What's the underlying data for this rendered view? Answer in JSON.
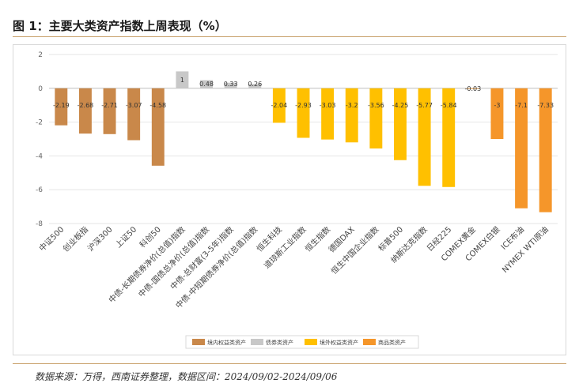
{
  "title": "图 1：主要大类资产指数上周表现（%）",
  "source": "数据来源：万得，西南证券整理，数据区间：2024/09/02-2024/09/06",
  "colors": {
    "domestic_equity": "#c9884a",
    "bond": "#c8c8c8",
    "overseas_equity": "#ffc000",
    "commodity": "#f5962a",
    "grid": "#e6e6e6",
    "axis": "#bfbfbf"
  },
  "chart_data": {
    "type": "bar",
    "ylim": [
      -8,
      2
    ],
    "yticks": [
      "2",
      "0",
      "-2",
      "-4",
      "-6",
      "-8"
    ],
    "grid": true,
    "legend_position": "bottom",
    "categories": [
      "中证500",
      "创业板指",
      "沪深300",
      "上证50",
      "科创50",
      "中债-长期债券净价(总值)指数",
      "中债-国债总净价(总值)指数",
      "中债-总财富(3-5年)指数",
      "中债-中短期债券净价(总值)指数",
      "恒生科技",
      "道琼斯工业指数",
      "恒生指数",
      "德国DAX",
      "恒生中国企业指数",
      "标普500",
      "纳斯达克指数",
      "日经225",
      "COMEX黄金",
      "COMEX白银",
      "ICE布油",
      "NYMEX WTI原油"
    ],
    "values": [
      -2.19,
      -2.68,
      -2.71,
      -3.07,
      -4.58,
      1,
      0.48,
      0.33,
      0.26,
      -2.04,
      -2.93,
      -3.03,
      -3.2,
      -3.56,
      -4.25,
      -5.77,
      -5.84,
      -0.03,
      -3,
      -7.1,
      -7.33
    ],
    "value_labels": [
      "-2.19",
      "-2.68",
      "-2.71",
      "-3.07",
      "-4.58",
      "1",
      "0.48",
      "0.33",
      "0.26",
      "-2.04",
      "-2.93",
      "-3.03",
      "-3.2",
      "-3.56",
      "-4.25",
      "-5.77",
      "-5.84",
      "-0.03",
      "-3",
      "-7.1",
      "-7.33"
    ],
    "groups": [
      "domestic_equity",
      "domestic_equity",
      "domestic_equity",
      "domestic_equity",
      "domestic_equity",
      "bond",
      "bond",
      "bond",
      "bond",
      "overseas_equity",
      "overseas_equity",
      "overseas_equity",
      "overseas_equity",
      "overseas_equity",
      "overseas_equity",
      "overseas_equity",
      "overseas_equity",
      "commodity",
      "commodity",
      "commodity",
      "commodity"
    ],
    "legend": [
      {
        "key": "domestic_equity",
        "name": "境内权益类资产"
      },
      {
        "key": "bond",
        "name": "债券类资产"
      },
      {
        "key": "overseas_equity",
        "name": "境外权益类资产"
      },
      {
        "key": "commodity",
        "name": "商品类资产"
      }
    ]
  }
}
